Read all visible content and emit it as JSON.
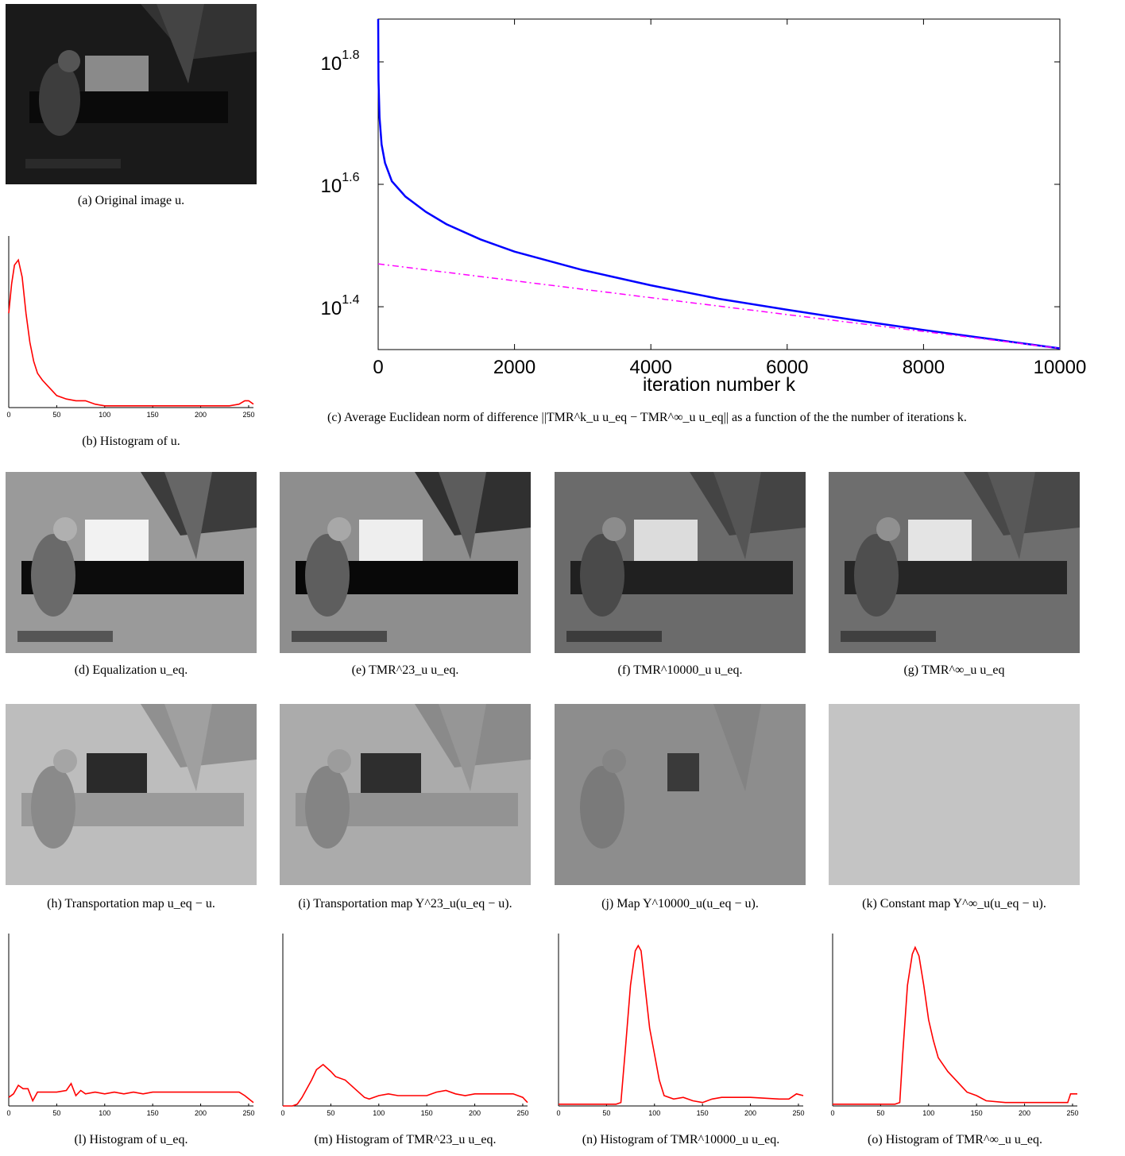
{
  "captions": {
    "a": "(a) Original image u.",
    "b": "(b) Histogram of u.",
    "c": "(c) Average Euclidean norm of difference ||TMR^k_u u_eq − TMR^∞_u u_eq|| as a function of the the number of iterations k.",
    "d": "(d) Equalization u_eq.",
    "e": "(e) TMR^23_u u_eq.",
    "f": "(f) TMR^10000_u u_eq.",
    "g": "(g) TMR^∞_u u_eq",
    "h": "(h) Transportation map u_eq − u.",
    "i": "(i) Transportation map Y^23_u(u_eq − u).",
    "j": "(j) Map Y^10000_u(u_eq − u).",
    "k": "(k) Constant map Y^∞_u(u_eq − u).",
    "l": "(l) Histogram of u_eq.",
    "m": "(m) Histogram of TMR^23_u u_eq.",
    "n": "(n) Histogram of TMR^10000_u u_eq.",
    "o": "(o) Histogram of TMR^∞_u u_eq."
  },
  "colors": {
    "blue": "#0000ff",
    "magenta": "#ff00ff",
    "red": "#ff0000"
  },
  "chart_data": [
    {
      "id": "c",
      "type": "line",
      "xlabel": "iteration number k",
      "ylabel": "",
      "xlim": [
        0,
        10000
      ],
      "ylim": [
        1.33,
        1.87
      ],
      "y_scale": "log10",
      "xticks": [
        "0",
        "2000",
        "4000",
        "6000",
        "8000",
        "10000"
      ],
      "yticks": [
        "10^1.4",
        "10^1.6",
        "10^1.8"
      ],
      "series": [
        {
          "style": "solid",
          "color": "blue",
          "x": [
            0,
            5,
            20,
            50,
            100,
            200,
            400,
            700,
            1000,
            1500,
            2000,
            3000,
            4000,
            5000,
            6000,
            7000,
            8000,
            9000,
            10000
          ],
          "y": [
            1.87,
            1.77,
            1.71,
            1.665,
            1.635,
            1.605,
            1.58,
            1.555,
            1.535,
            1.51,
            1.49,
            1.46,
            1.435,
            1.413,
            1.395,
            1.378,
            1.362,
            1.347,
            1.332
          ]
        },
        {
          "style": "dashdot",
          "color": "magenta",
          "x": [
            0,
            10000
          ],
          "y": [
            1.47,
            1.332
          ]
        }
      ]
    },
    {
      "id": "b",
      "type": "line",
      "xlim": [
        0,
        255
      ],
      "ylim": [
        0,
        1
      ],
      "xticks": [
        "0",
        "50",
        "100",
        "150",
        "200",
        "250"
      ],
      "x": [
        0,
        3,
        6,
        10,
        14,
        18,
        22,
        26,
        30,
        35,
        40,
        45,
        50,
        60,
        70,
        80,
        90,
        100,
        150,
        200,
        230,
        240,
        246,
        250,
        255
      ],
      "y": [
        0.55,
        0.72,
        0.83,
        0.86,
        0.76,
        0.55,
        0.38,
        0.27,
        0.2,
        0.16,
        0.13,
        0.1,
        0.07,
        0.05,
        0.04,
        0.04,
        0.02,
        0.01,
        0.01,
        0.01,
        0.01,
        0.02,
        0.04,
        0.04,
        0.02
      ]
    },
    {
      "id": "l",
      "type": "line",
      "xlim": [
        0,
        255
      ],
      "ylim": [
        0,
        1
      ],
      "xticks": [
        "0",
        "50",
        "100",
        "150",
        "200",
        "250"
      ],
      "x": [
        0,
        5,
        10,
        15,
        20,
        25,
        30,
        35,
        40,
        50,
        60,
        65,
        70,
        75,
        80,
        90,
        100,
        110,
        120,
        130,
        140,
        150,
        200,
        240,
        246,
        255
      ],
      "y": [
        0.05,
        0.07,
        0.12,
        0.1,
        0.1,
        0.03,
        0.08,
        0.08,
        0.08,
        0.08,
        0.09,
        0.13,
        0.06,
        0.09,
        0.07,
        0.08,
        0.07,
        0.08,
        0.07,
        0.08,
        0.07,
        0.08,
        0.08,
        0.08,
        0.06,
        0.02
      ]
    },
    {
      "id": "m",
      "type": "line",
      "xlim": [
        0,
        255
      ],
      "ylim": [
        0,
        1
      ],
      "xticks": [
        "0",
        "50",
        "100",
        "150",
        "200",
        "250"
      ],
      "x": [
        0,
        10,
        15,
        20,
        30,
        35,
        42,
        50,
        55,
        65,
        75,
        85,
        90,
        100,
        110,
        120,
        130,
        140,
        150,
        160,
        170,
        180,
        190,
        200,
        220,
        240,
        250,
        255
      ],
      "y": [
        0,
        0,
        0.01,
        0.05,
        0.15,
        0.21,
        0.24,
        0.2,
        0.17,
        0.15,
        0.1,
        0.05,
        0.04,
        0.06,
        0.07,
        0.06,
        0.06,
        0.06,
        0.06,
        0.08,
        0.09,
        0.07,
        0.06,
        0.07,
        0.07,
        0.07,
        0.05,
        0.02
      ]
    },
    {
      "id": "n",
      "type": "line",
      "xlim": [
        0,
        255
      ],
      "ylim": [
        0,
        1
      ],
      "xticks": [
        "0",
        "50",
        "100",
        "150",
        "200",
        "250"
      ],
      "x": [
        0,
        60,
        65,
        70,
        75,
        80,
        83,
        86,
        90,
        95,
        100,
        105,
        110,
        120,
        130,
        140,
        150,
        160,
        170,
        200,
        230,
        240,
        248,
        255
      ],
      "y": [
        0.01,
        0.01,
        0.02,
        0.35,
        0.7,
        0.9,
        0.93,
        0.9,
        0.7,
        0.45,
        0.3,
        0.15,
        0.06,
        0.04,
        0.05,
        0.03,
        0.02,
        0.04,
        0.05,
        0.05,
        0.04,
        0.04,
        0.07,
        0.06
      ]
    },
    {
      "id": "o",
      "type": "line",
      "xlim": [
        0,
        255
      ],
      "ylim": [
        0,
        1
      ],
      "xticks": [
        "0",
        "50",
        "100",
        "150",
        "200",
        "250"
      ],
      "x": [
        0,
        65,
        70,
        73,
        78,
        83,
        86,
        90,
        95,
        100,
        105,
        110,
        120,
        130,
        140,
        150,
        160,
        180,
        200,
        245,
        248,
        255
      ],
      "y": [
        0.01,
        0.01,
        0.02,
        0.3,
        0.7,
        0.88,
        0.92,
        0.87,
        0.7,
        0.5,
        0.38,
        0.28,
        0.2,
        0.14,
        0.08,
        0.06,
        0.03,
        0.02,
        0.02,
        0.02,
        0.07,
        0.07
      ]
    }
  ]
}
